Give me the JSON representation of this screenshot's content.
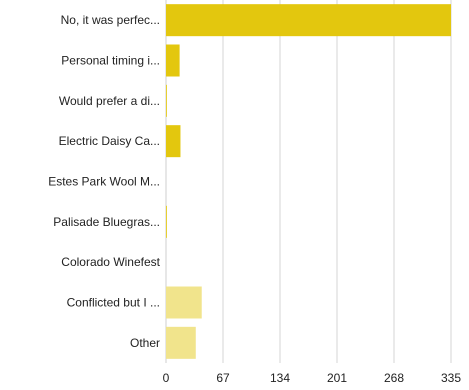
{
  "chart_data": {
    "type": "bar",
    "orientation": "horizontal",
    "categories": [
      "No, it was perfec...",
      "Personal timing i...",
      "Would prefer a di...",
      "Electric Daisy Ca...",
      "Estes Park Wool M...",
      "Palisade Bluegras...",
      "Colorado Winefest",
      "Conflicted but I ...",
      "Other"
    ],
    "values": [
      335,
      16,
      1,
      17,
      0,
      1,
      0,
      42,
      35
    ],
    "bar_colors": [
      "#e3c70e",
      "#e3c70e",
      "#e3c70e",
      "#e3c70e",
      "#e3c70e",
      "#e3c70e",
      "#e3c70e",
      "#f1e48c",
      "#f1e48c"
    ],
    "xticks": [
      0,
      67,
      134,
      201,
      268,
      335
    ],
    "xlim": [
      0,
      335
    ],
    "grid": true,
    "title": "",
    "xlabel": "",
    "ylabel": ""
  }
}
